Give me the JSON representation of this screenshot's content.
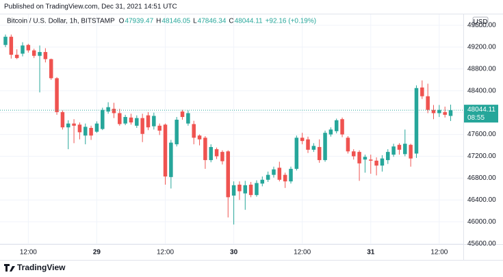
{
  "chart_data": {
    "type": "candlestick",
    "published": "Published on TradingView.com, Dec 31, 2021 14:51 UTC",
    "title": "Bitcoin / U.S. Dollar, 1h, BITSTAMP",
    "ohlc_letters": [
      "O",
      "H",
      "L",
      "C"
    ],
    "change_label": "+92.16 (+0.19%)",
    "currency": "USD",
    "countdown": "08:55",
    "brand": "TradingView",
    "up_color": "#26a69a",
    "down_color": "#ef5350",
    "grid": true,
    "ylim": [
      45590,
      49800
    ],
    "yticks": [
      {
        "value": 45600,
        "label": "45600.00"
      },
      {
        "value": 46000,
        "label": "46000.00"
      },
      {
        "value": 46400,
        "label": "46400.00"
      },
      {
        "value": 46800,
        "label": "46800.00"
      },
      {
        "value": 47200,
        "label": "47200.00"
      },
      {
        "value": 47600,
        "label": "47600.00"
      },
      {
        "value": 48000,
        "label": "48000.00"
      },
      {
        "value": 48400,
        "label": "48400.00"
      },
      {
        "value": 48800,
        "label": "48800.00"
      },
      {
        "value": 49200,
        "label": "49200.00"
      },
      {
        "value": 49600,
        "label": "49600.00"
      }
    ],
    "categories": [
      null,
      null,
      null,
      null,
      "12:00",
      null,
      null,
      null,
      null,
      null,
      null,
      null,
      null,
      null,
      null,
      null,
      "29",
      null,
      null,
      null,
      null,
      null,
      null,
      null,
      null,
      null,
      null,
      null,
      "12:00",
      null,
      null,
      null,
      null,
      null,
      null,
      null,
      null,
      null,
      null,
      null,
      "30",
      null,
      null,
      null,
      null,
      null,
      null,
      null,
      null,
      null,
      null,
      null,
      "12:00",
      null,
      null,
      null,
      null,
      null,
      null,
      null,
      null,
      null,
      null,
      null,
      "31",
      null,
      null,
      null,
      null,
      null,
      null,
      null,
      null,
      null,
      null,
      null,
      "12:00",
      null,
      null
    ],
    "open": [
      49240,
      49390,
      49060,
      49080,
      49240,
      49140,
      49040,
      49110,
      48980,
      48630,
      48010,
      47730,
      47800,
      47780,
      47580,
      47720,
      47650,
      47700,
      48020,
      48070,
      47990,
      47800,
      47910,
      47760,
      47900,
      47950,
      47750,
      47760,
      47780,
      46820,
      47420,
      48020,
      47800,
      47790,
      47580,
      47540,
      47130,
      47330,
      47280,
      47290,
      46480,
      46680,
      46520,
      46680,
      46490,
      46700,
      46770,
      46860,
      46990,
      46860,
      46740,
      46970,
      47540,
      47510,
      47320,
      47370,
      47130,
      47600,
      47660,
      47880,
      47540,
      47290,
      47280,
      47140,
      47140,
      47120,
      47030,
      47130,
      47230,
      47410,
      47240,
      47410,
      47250,
      48460,
      48300,
      48050,
      47990,
      48010,
      47939.47
    ],
    "high": [
      49430,
      49430,
      49160,
      49290,
      49260,
      49170,
      49230,
      49180,
      48990,
      48650,
      48040,
      47860,
      47880,
      47820,
      47800,
      47760,
      47840,
      48090,
      48190,
      48180,
      48070,
      47960,
      47980,
      47950,
      47980,
      48010,
      48000,
      47800,
      47800,
      47500,
      47920,
      48050,
      48040,
      47850,
      47600,
      47570,
      47420,
      47360,
      47310,
      47310,
      46740,
      46740,
      46750,
      46730,
      46760,
      46830,
      46920,
      47010,
      47100,
      46900,
      47010,
      47580,
      47630,
      47560,
      47440,
      47510,
      47670,
      47730,
      47890,
      47910,
      47570,
      47330,
      47310,
      47230,
      47230,
      47180,
      47220,
      47330,
      47430,
      47440,
      47690,
      47430,
      48500,
      48590,
      48530,
      48140,
      48140,
      48110,
      48146.05
    ],
    "low": [
      49200,
      48990,
      48980,
      49030,
      49100,
      49000,
      48370,
      48920,
      48600,
      47960,
      47690,
      47330,
      47440,
      47510,
      47420,
      47500,
      47630,
      47680,
      47980,
      47900,
      47760,
      47770,
      47780,
      47720,
      47460,
      47680,
      47690,
      47590,
      46680,
      46610,
      47380,
      47870,
      47760,
      47420,
      47400,
      46970,
      47090,
      47150,
      47050,
      46080,
      45950,
      46400,
      46220,
      46450,
      46460,
      46650,
      46730,
      46810,
      46740,
      46620,
      46700,
      46940,
      47420,
      47260,
      47280,
      47080,
      47100,
      47560,
      47620,
      47550,
      47250,
      47140,
      46750,
      46900,
      46880,
      46850,
      46920,
      47060,
      47190,
      47230,
      47200,
      47010,
      47170,
      48250,
      47990,
      47880,
      47920,
      47910,
      47846.34
    ],
    "close": [
      49390,
      49060,
      49000,
      49230,
      49140,
      49040,
      49110,
      48980,
      48630,
      48010,
      47730,
      47800,
      47760,
      47640,
      47740,
      47580,
      47800,
      48050,
      48100,
      47990,
      47790,
      47920,
      47820,
      47900,
      47610,
      47730,
      47940,
      47670,
      46830,
      47450,
      47870,
      47920,
      47990,
      47540,
      47510,
      47130,
      47370,
      47200,
      47110,
      46450,
      46670,
      46560,
      46670,
      46490,
      46710,
      46770,
      46860,
      46960,
      46770,
      46740,
      46970,
      47540,
      47480,
      47320,
      47390,
      47130,
      47630,
      47690,
      47860,
      47600,
      47290,
      47200,
      47070,
      47190,
      47120,
      47030,
      47160,
      47280,
      47380,
      47320,
      47430,
      47160,
      48450,
      48300,
      48050,
      47990,
      48050,
      47960,
      48044.11
    ]
  }
}
